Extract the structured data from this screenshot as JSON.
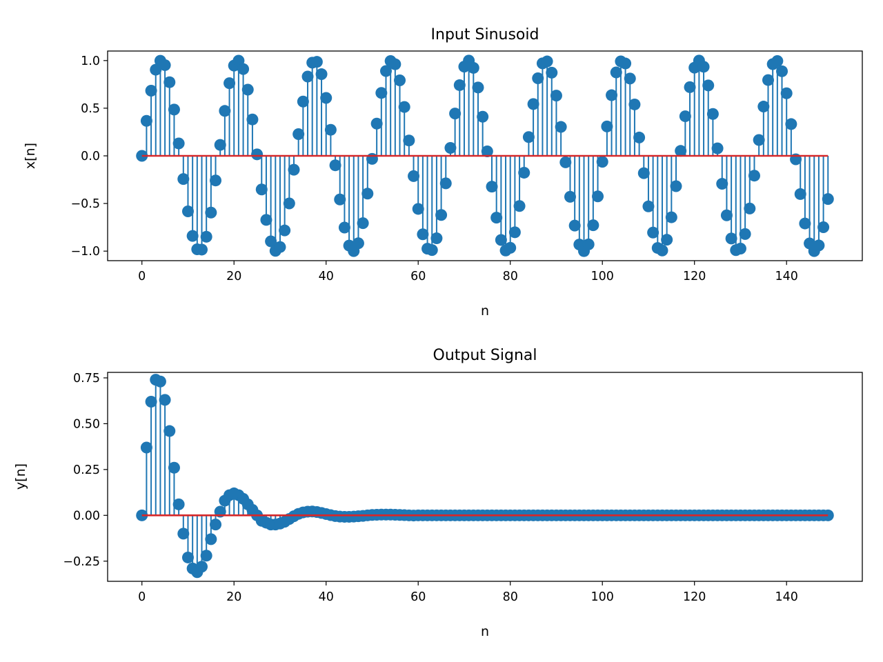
{
  "chart_data": [
    {
      "type": "stem",
      "title": "Input Sinusoid",
      "xlabel": "n",
      "ylabel": "x[n]",
      "xlim": [
        -7.45,
        156.45
      ],
      "ylim": [
        -1.1,
        1.1
      ],
      "xticks": [
        0,
        20,
        40,
        60,
        80,
        100,
        120,
        140
      ],
      "xtick_labels": [
        "0",
        "20",
        "40",
        "60",
        "80",
        "100",
        "120",
        "140"
      ],
      "yticks": [
        -1.0,
        -0.5,
        0.0,
        0.5,
        1.0
      ],
      "ytick_labels": [
        "−1.0",
        "−0.5",
        "0.0",
        "0.5",
        "1.0"
      ],
      "n_points": 150,
      "signal": "x[n] = sin(2*pi*n/16.7), n = 0..149",
      "frequency_cycles_per_sample": 0.0599,
      "amplitude": 1.0,
      "stem_color": "#1f77b4",
      "baseline_color": "#d62728",
      "grid": false
    },
    {
      "type": "stem",
      "title": "Output Signal",
      "xlabel": "n",
      "ylabel": "y[n]",
      "xlim": [
        -7.45,
        156.45
      ],
      "ylim": [
        -0.36,
        0.78
      ],
      "xticks": [
        0,
        20,
        40,
        60,
        80,
        100,
        120,
        140
      ],
      "xtick_labels": [
        "0",
        "20",
        "40",
        "60",
        "80",
        "100",
        "120",
        "140"
      ],
      "yticks": [
        -0.25,
        0.0,
        0.25,
        0.5,
        0.75
      ],
      "ytick_labels": [
        "−0.25",
        "0.00",
        "0.25",
        "0.50",
        "0.75"
      ],
      "n_points": 150,
      "values_head": [
        0.0,
        0.37,
        0.62,
        0.74,
        0.73,
        0.63,
        0.46,
        0.26,
        0.06,
        -0.1,
        -0.23,
        -0.29,
        -0.31,
        -0.28,
        -0.22,
        -0.13,
        -0.05,
        0.02,
        0.08,
        0.11,
        0.12,
        0.11,
        0.09,
        0.06,
        0.03,
        0.0,
        -0.03,
        -0.04,
        -0.05,
        -0.05,
        -0.045,
        -0.035,
        -0.02,
        -0.005,
        0.008,
        0.016,
        0.02,
        0.021,
        0.018,
        0.013,
        0.007,
        0.001,
        -0.004,
        -0.007,
        -0.008,
        -0.008,
        -0.007,
        -0.005,
        -0.003,
        0.0,
        0.002,
        0.003,
        0.004,
        0.004,
        0.004,
        0.003,
        0.002,
        0.001,
        0.0,
        -0.001
      ],
      "values_tail_note": "y[n] = 0.00 for n = 60..149",
      "stem_color": "#1f77b4",
      "baseline_color": "#d62728",
      "grid": false
    }
  ]
}
